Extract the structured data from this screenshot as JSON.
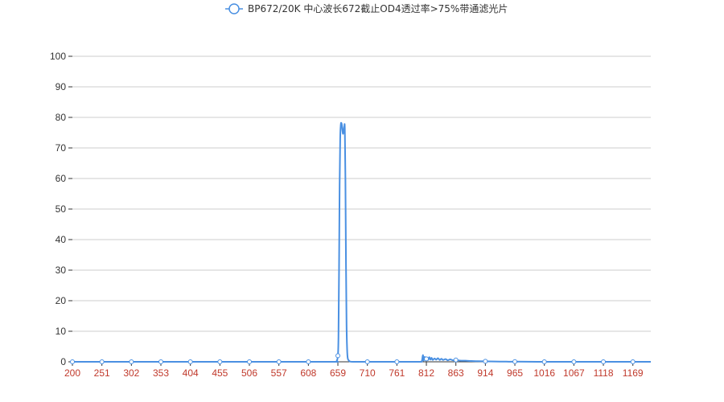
{
  "chart_data": {
    "type": "line",
    "title": "",
    "xlabel": "",
    "ylabel": "",
    "ylim": [
      0,
      100
    ],
    "xlim": [
      200,
      1200
    ],
    "y_ticks": [
      "0",
      "10",
      "20",
      "30",
      "40",
      "50",
      "60",
      "70",
      "80",
      "90",
      "100"
    ],
    "x_ticks": [
      "200",
      "251",
      "302",
      "353",
      "404",
      "455",
      "506",
      "557",
      "608",
      "659",
      "710",
      "761",
      "812",
      "863",
      "914",
      "965",
      "1016",
      "1067",
      "1118",
      "1169"
    ],
    "grid": true,
    "legend_position": "top-center",
    "colors": {
      "series": "#4a90e2",
      "x_tick_label": "#c0392b",
      "grid": "#cccccc",
      "axis": "#333333"
    },
    "series": [
      {
        "name": "BP672/20K 中心波长672截止OD4透过率>75%带通滤光片",
        "marker": "circle-hollow",
        "points": [
          [
            200,
            0
          ],
          [
            251,
            0
          ],
          [
            302,
            0
          ],
          [
            353,
            0
          ],
          [
            404,
            0
          ],
          [
            455,
            0
          ],
          [
            506,
            0
          ],
          [
            557,
            0
          ],
          [
            608,
            0
          ],
          [
            655,
            0
          ],
          [
            657,
            0.3
          ],
          [
            659,
            2
          ],
          [
            660,
            8
          ],
          [
            661,
            30
          ],
          [
            662,
            58
          ],
          [
            663,
            73
          ],
          [
            664,
            77.5
          ],
          [
            665,
            78.2
          ],
          [
            666,
            77.4
          ],
          [
            667,
            75.5
          ],
          [
            668,
            74.6
          ],
          [
            669,
            75.6
          ],
          [
            670,
            77
          ],
          [
            671,
            76.2
          ],
          [
            672,
            60
          ],
          [
            673,
            32
          ],
          [
            674,
            12
          ],
          [
            675,
            4
          ],
          [
            676,
            1.2
          ],
          [
            678,
            0.4
          ],
          [
            680,
            0.1
          ],
          [
            685,
            0
          ],
          [
            710,
            0
          ],
          [
            761,
            0
          ],
          [
            800,
            0
          ],
          [
            804,
            0.2
          ],
          [
            806,
            2.2
          ],
          [
            807,
            0.4
          ],
          [
            809,
            1.6
          ],
          [
            811,
            0.5
          ],
          [
            813,
            1.4
          ],
          [
            815,
            0.6
          ],
          [
            817,
            1.5
          ],
          [
            819,
            0.7
          ],
          [
            821,
            1.3
          ],
          [
            823,
            0.6
          ],
          [
            826,
            1.1
          ],
          [
            829,
            0.7
          ],
          [
            832,
            1.2
          ],
          [
            835,
            0.6
          ],
          [
            838,
            1
          ],
          [
            841,
            0.6
          ],
          [
            845,
            0.9
          ],
          [
            849,
            0.5
          ],
          [
            853,
            0.8
          ],
          [
            858,
            0.5
          ],
          [
            863,
            0.6
          ],
          [
            870,
            0.4
          ],
          [
            880,
            0.35
          ],
          [
            890,
            0.25
          ],
          [
            900,
            0.2
          ],
          [
            914,
            0.15
          ],
          [
            930,
            0.1
          ],
          [
            950,
            0.05
          ],
          [
            965,
            0.05
          ],
          [
            1016,
            0
          ],
          [
            1067,
            0
          ],
          [
            1118,
            0
          ],
          [
            1169,
            0
          ],
          [
            1200,
            0
          ]
        ],
        "marker_x": [
          200,
          251,
          302,
          353,
          404,
          455,
          506,
          557,
          608,
          659,
          710,
          761,
          812,
          863,
          914,
          965,
          1016,
          1067,
          1118,
          1169
        ]
      }
    ]
  }
}
